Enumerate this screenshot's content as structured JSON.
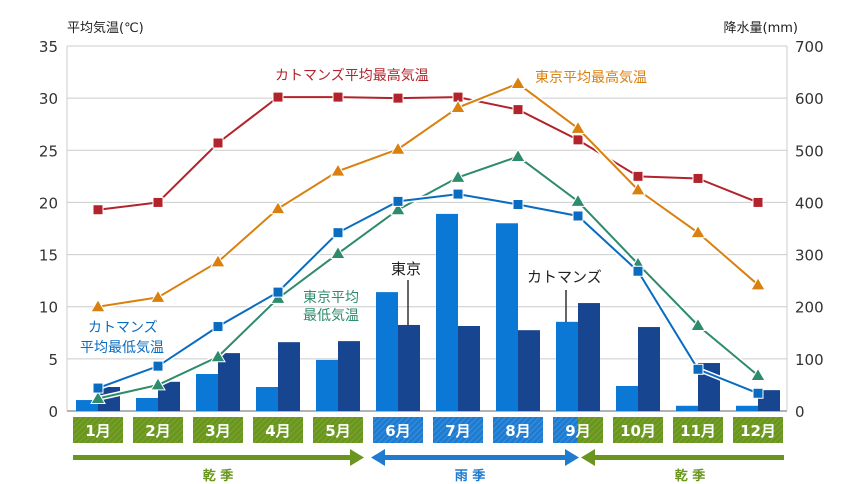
{
  "chart_data": {
    "type": "bar+line",
    "categories": [
      "1月",
      "2月",
      "3月",
      "4月",
      "5月",
      "6月",
      "7月",
      "8月",
      "9月",
      "10月",
      "11月",
      "12月"
    ],
    "y_left": {
      "label": "平均気温(℃)",
      "range": [
        0,
        35
      ],
      "ticks": [
        0,
        5,
        10,
        15,
        20,
        25,
        30,
        35
      ]
    },
    "y_right": {
      "label": "降水量(mm)",
      "range": [
        0,
        700
      ],
      "ticks": [
        0,
        100,
        200,
        300,
        400,
        500,
        600,
        700
      ]
    },
    "grid": true,
    "bar_series": [
      {
        "name": "カトマンズ",
        "color": "#0a78d4",
        "values": [
          21,
          25,
          71,
          46,
          98,
          228,
          378,
          360,
          171,
          48,
          10,
          10
        ]
      },
      {
        "name": "東京",
        "color": "#174590",
        "values": [
          46,
          56,
          111,
          132,
          134,
          165,
          163,
          155,
          207,
          161,
          92,
          40
        ]
      }
    ],
    "line_series": [
      {
        "name": "カトマンズ平均最高気温",
        "color": "#b2232b",
        "marker": "square",
        "values": [
          19.3,
          20.0,
          25.7,
          30.1,
          30.1,
          30.0,
          30.1,
          28.9,
          26.0,
          22.5,
          22.3,
          20.0
        ]
      },
      {
        "name": "東京平均最高気温",
        "color": "#d9800f",
        "marker": "triangle",
        "values": [
          10.0,
          10.9,
          14.3,
          19.4,
          23.0,
          25.1,
          29.1,
          31.4,
          27.1,
          21.2,
          17.1,
          12.1
        ]
      },
      {
        "name": "東京平均最低気温",
        "color": "#2e8b6b",
        "marker": "triangle",
        "values": [
          1.2,
          2.5,
          5.2,
          10.8,
          15.1,
          19.3,
          22.4,
          24.4,
          20.1,
          14.1,
          8.2,
          3.4
        ]
      },
      {
        "name": "カトマンズ平均最低気温",
        "color": "#0a6cc0",
        "marker": "square",
        "values": [
          2.2,
          4.3,
          8.1,
          11.4,
          17.1,
          20.1,
          20.8,
          19.8,
          18.7,
          13.4,
          4.0,
          1.7
        ]
      }
    ],
    "annotations": {
      "ktm_max": "カトマンズ平均最高気温",
      "tokyo_max": "東京平均最高気温",
      "tokyo_min_1": "東京平均",
      "tokyo_min_2": "最低気温",
      "ktm_min_1": "カトマンズ",
      "ktm_min_2": "平均最低気温",
      "tokyo_bar": "東京",
      "ktm_bar": "カトマンズ"
    },
    "seasons": [
      {
        "label": "乾 季",
        "from": "1月",
        "to": "5月",
        "color": "#6a961f"
      },
      {
        "label": "雨 季",
        "from": "6月",
        "to": "9月",
        "color": "#1e7bd0"
      },
      {
        "label": "乾 季",
        "from": "9月",
        "to": "12月",
        "color": "#6a961f"
      }
    ],
    "month_season": [
      "dry",
      "dry",
      "dry",
      "dry",
      "dry",
      "rain",
      "rain",
      "rain",
      "split",
      "dry",
      "dry",
      "dry"
    ]
  }
}
